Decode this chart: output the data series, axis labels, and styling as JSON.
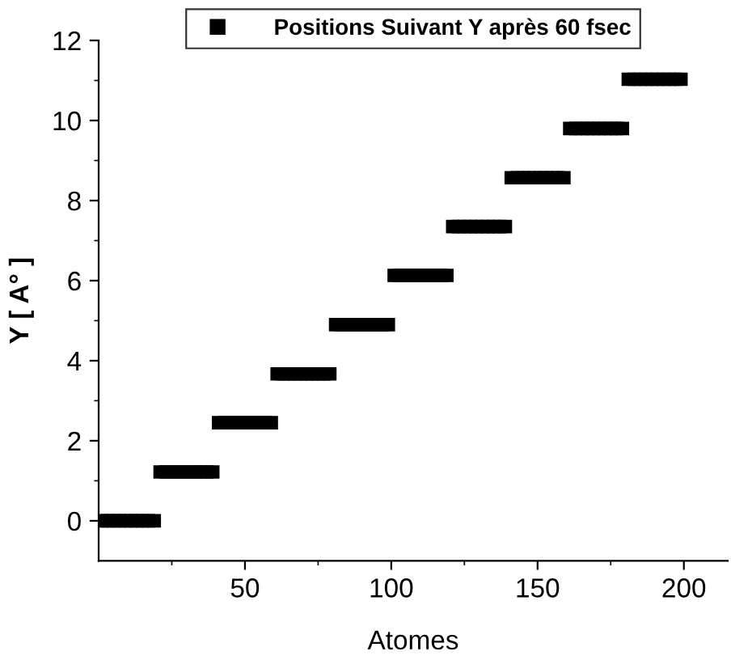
{
  "chart_data": {
    "type": "scatter",
    "xlabel": "Atomes",
    "ylabel": "Y [ A° ]",
    "x": [
      1,
      3,
      5,
      7,
      9,
      11,
      13,
      15,
      17,
      19,
      21,
      23,
      25,
      27,
      29,
      31,
      33,
      35,
      37,
      39,
      41,
      43,
      45,
      47,
      49,
      51,
      53,
      55,
      57,
      59,
      61,
      63,
      65,
      67,
      69,
      71,
      73,
      75,
      77,
      79,
      81,
      83,
      85,
      87,
      89,
      91,
      93,
      95,
      97,
      99,
      101,
      103,
      105,
      107,
      109,
      111,
      113,
      115,
      117,
      119,
      121,
      123,
      125,
      127,
      129,
      131,
      133,
      135,
      137,
      139,
      141,
      143,
      145,
      147,
      149,
      151,
      153,
      155,
      157,
      159,
      161,
      163,
      165,
      167,
      169,
      171,
      173,
      175,
      177,
      179,
      181,
      183,
      185,
      187,
      189,
      191,
      193,
      195,
      197,
      199
    ],
    "series": [
      {
        "name": "Positions Suivant Y après 60 fsec",
        "color": "#000000",
        "values": [
          0,
          0,
          0,
          0,
          0,
          0,
          0,
          0,
          0,
          0,
          1.22,
          1.22,
          1.22,
          1.22,
          1.22,
          1.22,
          1.22,
          1.22,
          1.22,
          1.22,
          2.45,
          2.45,
          2.45,
          2.45,
          2.45,
          2.45,
          2.45,
          2.45,
          2.45,
          2.45,
          3.67,
          3.67,
          3.67,
          3.67,
          3.67,
          3.67,
          3.67,
          3.67,
          3.67,
          3.67,
          4.9,
          4.9,
          4.9,
          4.9,
          4.9,
          4.9,
          4.9,
          4.9,
          4.9,
          4.9,
          6.13,
          6.13,
          6.13,
          6.13,
          6.13,
          6.13,
          6.13,
          6.13,
          6.13,
          6.13,
          7.35,
          7.35,
          7.35,
          7.35,
          7.35,
          7.35,
          7.35,
          7.35,
          7.35,
          7.35,
          8.57,
          8.57,
          8.57,
          8.57,
          8.57,
          8.57,
          8.57,
          8.57,
          8.57,
          8.57,
          9.8,
          9.8,
          9.8,
          9.8,
          9.8,
          9.8,
          9.8,
          9.8,
          9.8,
          9.8,
          11.03,
          11.03,
          11.03,
          11.03,
          11.03,
          11.03,
          11.03,
          11.03,
          11.03,
          11.03
        ]
      }
    ],
    "xlim": [
      0,
      215
    ],
    "ylim": [
      -1,
      12
    ],
    "xticks": [
      {
        "value": 25,
        "label": null
      },
      50,
      {
        "value": 75,
        "label": null
      },
      100,
      {
        "value": 125,
        "label": null
      },
      150,
      {
        "value": 175,
        "label": null
      },
      200
    ],
    "yticks": [
      0,
      {
        "value": 1,
        "label": null
      },
      2,
      {
        "value": 3,
        "label": null
      },
      4,
      {
        "value": 5,
        "label": null
      },
      6,
      {
        "value": 7,
        "label": null
      },
      8,
      {
        "value": 9,
        "label": null
      },
      10,
      {
        "value": 11,
        "label": null
      },
      12
    ],
    "marker": "square",
    "legend": "top",
    "grid": false
  }
}
